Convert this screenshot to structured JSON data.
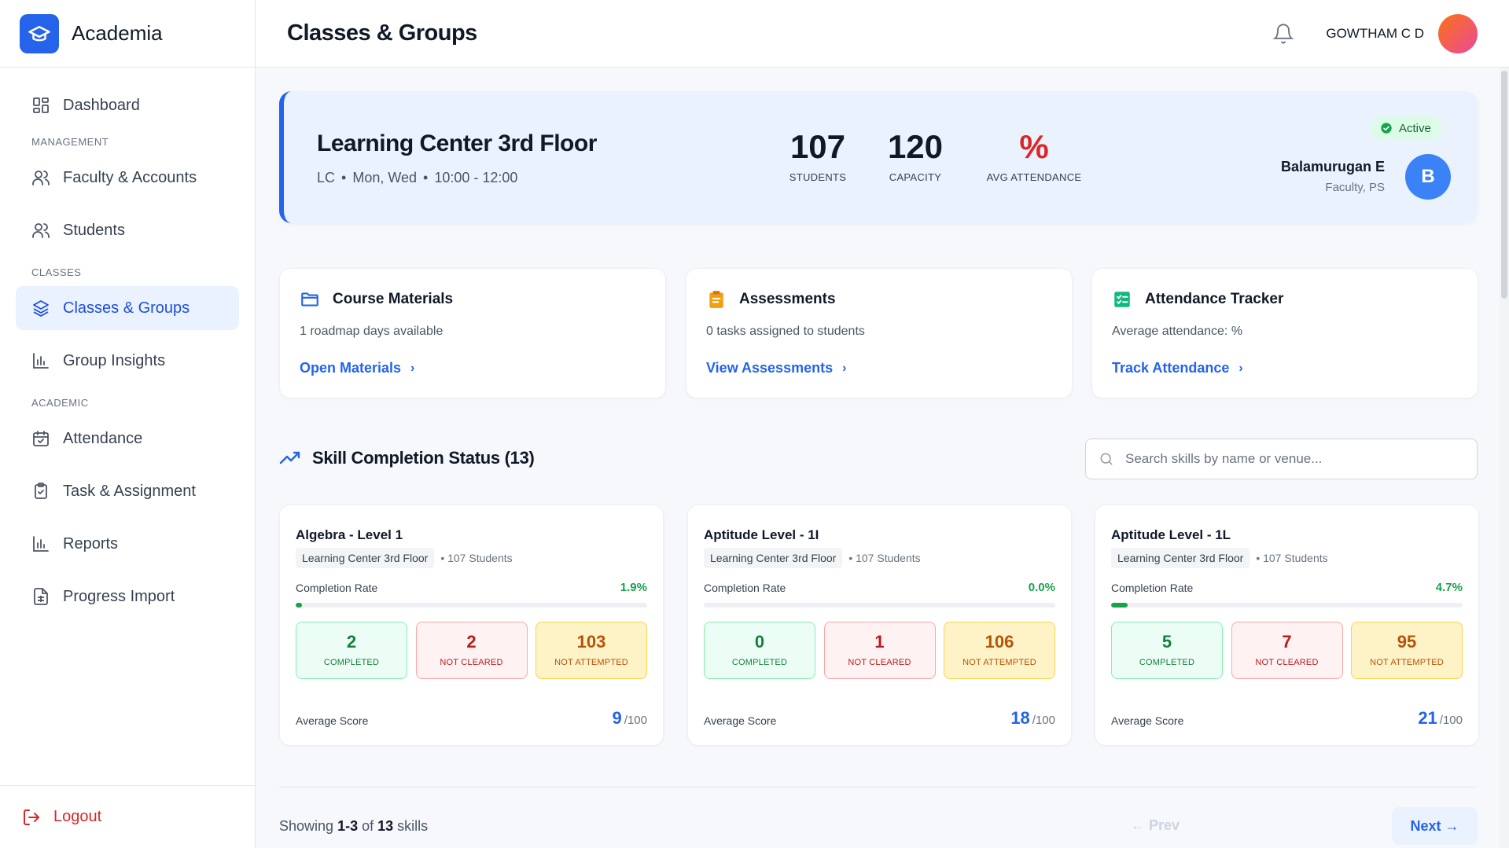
{
  "app": {
    "name": "Academia"
  },
  "nav": {
    "dashboard": "Dashboard",
    "section_management": "MANAGEMENT",
    "faculty": "Faculty & Accounts",
    "students": "Students",
    "section_classes": "CLASSES",
    "classes": "Classes & Groups",
    "insights": "Group Insights",
    "section_academic": "ACADEMIC",
    "attendance": "Attendance",
    "tasks": "Task & Assignment",
    "reports": "Reports",
    "progress": "Progress Import",
    "logout": "Logout"
  },
  "header": {
    "title": "Classes & Groups",
    "user": "GOWTHAM C D"
  },
  "hero": {
    "title": "Learning Center 3rd Floor",
    "code": "LC",
    "days": "Mon, Wed",
    "time": "10:00 - 12:00",
    "students_val": "107",
    "students_label": "STUDENTS",
    "capacity_val": "120",
    "capacity_label": "CAPACITY",
    "attendance_val": "%",
    "attendance_label": "AVG ATTENDANCE",
    "status": "Active",
    "faculty_name": "Balamurugan E",
    "faculty_role": "Faculty, PS",
    "faculty_initial": "B"
  },
  "quick": [
    {
      "title": "Course Materials",
      "desc": "1 roadmap days available",
      "link": "Open Materials"
    },
    {
      "title": "Assessments",
      "desc": "0 tasks assigned to students",
      "link": "View Assessments"
    },
    {
      "title": "Attendance Tracker",
      "desc": "Average attendance: %",
      "link": "Track Attendance"
    }
  ],
  "skills_section": {
    "title": "Skill Completion Status (13)",
    "search_placeholder": "Search skills by name or venue..."
  },
  "skills": [
    {
      "title": "Algebra - Level 1",
      "venue": "Learning Center 3rd Floor",
      "students": "107 Students",
      "rate_label": "Completion Rate",
      "rate": "1.9%",
      "rate_value": 1.9,
      "completed": "2",
      "completed_label": "COMPLETED",
      "not_cleared": "2",
      "not_cleared_label": "NOT CLEARED",
      "not_attempted": "103",
      "not_attempted_label": "NOT ATTEMPTED",
      "avg_label": "Average Score",
      "avg": "9",
      "avg_max": "/100"
    },
    {
      "title": "Aptitude Level - 1I",
      "venue": "Learning Center 3rd Floor",
      "students": "107 Students",
      "rate_label": "Completion Rate",
      "rate": "0.0%",
      "rate_value": 0.0,
      "completed": "0",
      "completed_label": "COMPLETED",
      "not_cleared": "1",
      "not_cleared_label": "NOT CLEARED",
      "not_attempted": "106",
      "not_attempted_label": "NOT ATTEMPTED",
      "avg_label": "Average Score",
      "avg": "18",
      "avg_max": "/100"
    },
    {
      "title": "Aptitude Level - 1L",
      "venue": "Learning Center 3rd Floor",
      "students": "107 Students",
      "rate_label": "Completion Rate",
      "rate": "4.7%",
      "rate_value": 4.7,
      "completed": "5",
      "completed_label": "COMPLETED",
      "not_cleared": "7",
      "not_cleared_label": "NOT CLEARED",
      "not_attempted": "95",
      "not_attempted_label": "NOT ATTEMPTED",
      "avg_label": "Average Score",
      "avg": "21",
      "avg_max": "/100"
    }
  ],
  "pagination": {
    "showing_prefix": "Showing",
    "range": "1-3",
    "of": "of",
    "total": "13",
    "suffix": "skills",
    "prev": "← Prev",
    "next": "Next →"
  },
  "colors": {
    "accent": "#2563eb",
    "success": "#16a34a",
    "danger": "#dc2626",
    "warning": "#b45309"
  }
}
